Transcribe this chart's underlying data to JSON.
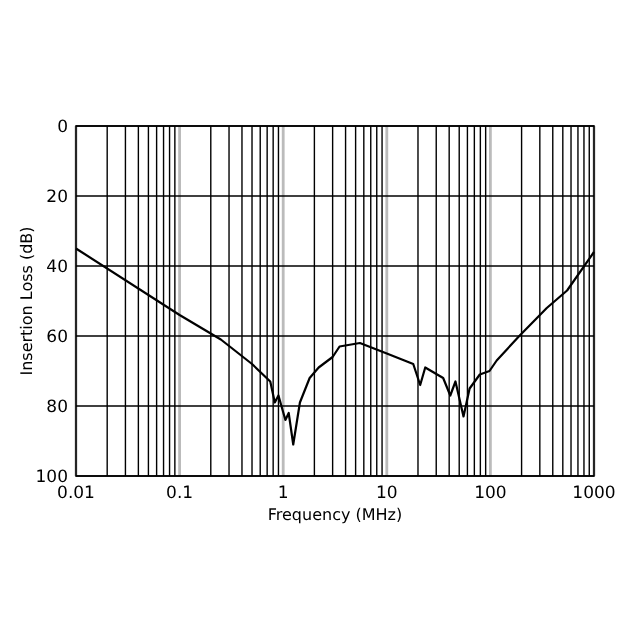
{
  "chart_data": {
    "type": "line",
    "xlabel": "Frequency (MHz)",
    "ylabel": "Insertion Loss (dB)",
    "log": "x",
    "grid": true,
    "line_style": "solid",
    "xlim": [
      0.01,
      1000
    ],
    "ylim": [
      100,
      0
    ],
    "xticks": [
      0.01,
      {
        "value": 0.02,
        "label": null
      },
      {
        "value": 0.03,
        "label": null
      },
      {
        "value": 0.04,
        "label": null
      },
      {
        "value": 0.05,
        "label": null
      },
      {
        "value": 0.06,
        "label": null
      },
      {
        "value": 0.07,
        "label": null
      },
      {
        "value": 0.08,
        "label": null
      },
      {
        "value": 0.09,
        "label": null
      },
      0.1,
      {
        "value": 0.2,
        "label": null
      },
      {
        "value": 0.3,
        "label": null
      },
      {
        "value": 0.4,
        "label": null
      },
      {
        "value": 0.5,
        "label": null
      },
      {
        "value": 0.6,
        "label": null
      },
      {
        "value": 0.7,
        "label": null
      },
      {
        "value": 0.8,
        "label": null
      },
      {
        "value": 0.9,
        "label": null
      },
      1,
      {
        "value": 2,
        "label": null
      },
      {
        "value": 3,
        "label": null
      },
      {
        "value": 4,
        "label": null
      },
      {
        "value": 5,
        "label": null
      },
      {
        "value": 6,
        "label": null
      },
      {
        "value": 7,
        "label": null
      },
      {
        "value": 8,
        "label": null
      },
      {
        "value": 9,
        "label": null
      },
      10,
      {
        "value": 20,
        "label": null
      },
      {
        "value": 30,
        "label": null
      },
      {
        "value": 40,
        "label": null
      },
      {
        "value": 50,
        "label": null
      },
      {
        "value": 60,
        "label": null
      },
      {
        "value": 70,
        "label": null
      },
      {
        "value": 80,
        "label": null
      },
      {
        "value": 90,
        "label": null
      },
      100,
      {
        "value": 200,
        "label": null
      },
      {
        "value": 300,
        "label": null
      },
      {
        "value": 400,
        "label": null
      },
      {
        "value": 500,
        "label": null
      },
      {
        "value": 600,
        "label": null
      },
      {
        "value": 700,
        "label": null
      },
      {
        "value": 800,
        "label": null
      },
      {
        "value": 900,
        "label": null
      },
      1000
    ],
    "yticks": [
      0,
      20,
      40,
      60,
      80,
      100
    ],
    "series": [
      {
        "color": "#000000",
        "x": [
          0.01,
          0.1,
          0.25,
          0.5,
          0.75,
          0.83,
          0.9,
          1.05,
          1.13,
          1.25,
          1.45,
          1.8,
          2.2,
          3,
          3.5,
          5.5,
          10,
          18,
          21,
          23.5,
          35,
          41,
          46,
          55,
          63,
          79,
          98,
          115,
          190,
          350,
          550,
          1000
        ],
        "values": [
          35,
          54,
          61,
          68,
          73,
          79,
          77,
          84,
          82,
          91,
          79,
          72,
          69,
          66,
          63,
          62,
          65,
          68,
          74,
          69,
          72,
          77,
          73,
          83,
          75,
          71,
          70,
          67,
          60,
          52,
          47,
          36
        ]
      }
    ]
  }
}
